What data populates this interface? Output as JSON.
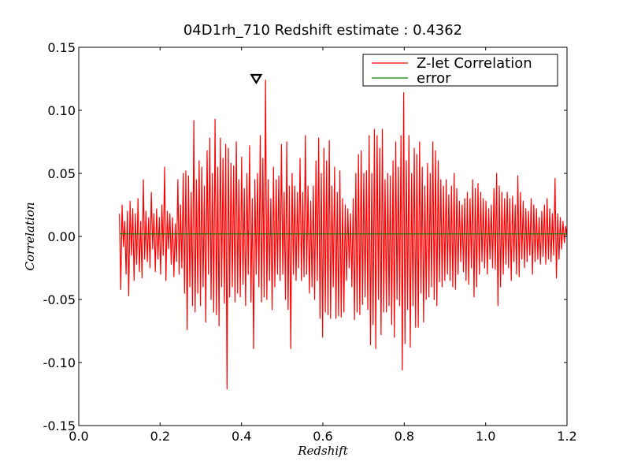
{
  "chart_data": {
    "type": "line",
    "title": "04D1rh_710 Redshift estimate : 0.4362",
    "xlabel": "Redshift",
    "ylabel": "Correlation",
    "xlim": [
      0.0,
      1.2
    ],
    "ylim": [
      -0.15,
      0.15
    ],
    "xticks": [
      "0.0",
      "0.2",
      "0.4",
      "0.6",
      "0.8",
      "1.0",
      "1.2"
    ],
    "yticks": [
      "0.15",
      "0.10",
      "0.05",
      "0.00",
      "-0.05",
      "-0.10",
      "-0.15"
    ],
    "grid": false,
    "legend_position": "top-right",
    "series": [
      {
        "name": "Z-let Correlation",
        "color": "#ff0000",
        "x_start": 0.1,
        "x_end": 1.2,
        "values": [
          0.018,
          -0.042,
          0.025,
          -0.008,
          0.012,
          -0.03,
          0.02,
          -0.047,
          0.028,
          -0.015,
          0.022,
          -0.035,
          0.018,
          -0.022,
          0.03,
          -0.028,
          0.012,
          -0.033,
          0.045,
          -0.018,
          0.02,
          -0.02,
          0.015,
          -0.025,
          0.035,
          -0.01,
          0.018,
          -0.028,
          0.022,
          -0.018,
          0.015,
          -0.03,
          0.025,
          -0.015,
          0.055,
          -0.035,
          0.02,
          -0.01,
          0.018,
          -0.022,
          0.015,
          -0.032,
          0.01,
          -0.02,
          0.045,
          -0.03,
          0.025,
          -0.025,
          0.05,
          -0.045,
          0.052,
          -0.074,
          0.048,
          -0.04,
          0.035,
          -0.055,
          0.092,
          -0.06,
          0.045,
          -0.045,
          0.06,
          -0.055,
          0.055,
          -0.04,
          0.04,
          -0.068,
          0.068,
          -0.03,
          0.078,
          -0.05,
          0.05,
          -0.06,
          0.093,
          -0.062,
          0.055,
          -0.071,
          0.078,
          -0.04,
          0.062,
          -0.053,
          0.073,
          -0.121,
          0.07,
          -0.048,
          0.058,
          -0.04,
          0.056,
          -0.052,
          0.075,
          -0.045,
          0.045,
          -0.048,
          0.063,
          -0.038,
          0.038,
          -0.055,
          0.05,
          -0.03,
          0.072,
          -0.052,
          0.03,
          -0.089,
          0.045,
          -0.03,
          0.05,
          -0.04,
          0.08,
          -0.052,
          0.062,
          -0.048,
          0.124,
          -0.05,
          0.045,
          -0.035,
          0.03,
          -0.058,
          0.055,
          -0.04,
          0.045,
          -0.03,
          0.048,
          -0.035,
          0.073,
          -0.03,
          0.035,
          -0.05,
          0.075,
          -0.058,
          0.04,
          -0.089,
          0.05,
          -0.03,
          0.04,
          -0.035,
          0.035,
          -0.025,
          0.062,
          -0.035,
          0.035,
          -0.032,
          0.08,
          -0.03,
          0.04,
          -0.045,
          0.028,
          -0.04,
          0.04,
          -0.05,
          0.06,
          -0.035,
          0.078,
          -0.065,
          0.05,
          -0.08,
          0.07,
          -0.06,
          0.06,
          -0.062,
          0.076,
          -0.065,
          0.04,
          -0.04,
          0.055,
          -0.065,
          0.035,
          -0.063,
          0.052,
          -0.064,
          0.03,
          -0.06,
          0.025,
          -0.035,
          0.022,
          -0.025,
          0.018,
          -0.04,
          0.03,
          -0.066,
          0.05,
          -0.06,
          0.065,
          -0.062,
          0.068,
          -0.054,
          0.05,
          -0.048,
          0.052,
          -0.058,
          0.08,
          -0.086,
          0.05,
          -0.07,
          0.085,
          -0.089,
          0.08,
          -0.05,
          0.07,
          -0.078,
          0.085,
          -0.06,
          0.045,
          -0.06,
          0.05,
          -0.055,
          0.048,
          -0.07,
          0.06,
          -0.08,
          0.075,
          -0.05,
          0.055,
          -0.055,
          0.08,
          -0.106,
          0.114,
          -0.085,
          0.06,
          -0.058,
          0.08,
          -0.088,
          0.05,
          -0.055,
          0.07,
          -0.072,
          0.065,
          -0.072,
          0.075,
          -0.045,
          0.055,
          -0.068,
          0.04,
          -0.05,
          0.058,
          -0.048,
          0.05,
          -0.04,
          0.075,
          -0.05,
          0.068,
          -0.055,
          0.06,
          -0.036,
          0.045,
          -0.04,
          0.04,
          -0.035,
          0.045,
          -0.03,
          0.033,
          -0.035,
          0.04,
          -0.04,
          0.05,
          -0.042,
          0.038,
          -0.03,
          0.028,
          -0.02,
          0.025,
          -0.028,
          0.03,
          -0.035,
          0.035,
          -0.038,
          0.03,
          -0.025,
          0.045,
          -0.048,
          0.038,
          -0.04,
          0.042,
          -0.03,
          0.035,
          -0.02,
          0.03,
          -0.025,
          0.028,
          -0.03,
          0.022,
          -0.018,
          0.025,
          -0.025,
          0.038,
          -0.026,
          0.05,
          -0.055,
          0.04,
          -0.04,
          0.035,
          -0.03,
          0.03,
          -0.022,
          0.035,
          -0.025,
          0.03,
          -0.035,
          0.032,
          -0.02,
          0.025,
          -0.03,
          0.048,
          -0.032,
          0.035,
          -0.018,
          0.028,
          -0.025,
          0.022,
          -0.02,
          0.02,
          -0.015,
          0.03,
          -0.03,
          0.025,
          -0.02,
          0.022,
          -0.018,
          0.015,
          -0.022,
          0.02,
          -0.016,
          0.025,
          -0.022,
          0.03,
          -0.018,
          0.022,
          -0.02,
          0.018,
          -0.015,
          0.046,
          -0.033,
          0.018,
          -0.018,
          0.015,
          -0.01,
          0.012,
          -0.005,
          0.008,
          0.0
        ]
      },
      {
        "name": "error",
        "color": "#008000",
        "x_start": 0.1,
        "x_end": 1.2,
        "constant": 0.002
      }
    ],
    "markers": [
      {
        "type": "triangle-down",
        "x": 0.4362,
        "y": 0.125,
        "color": "#000000"
      }
    ]
  }
}
